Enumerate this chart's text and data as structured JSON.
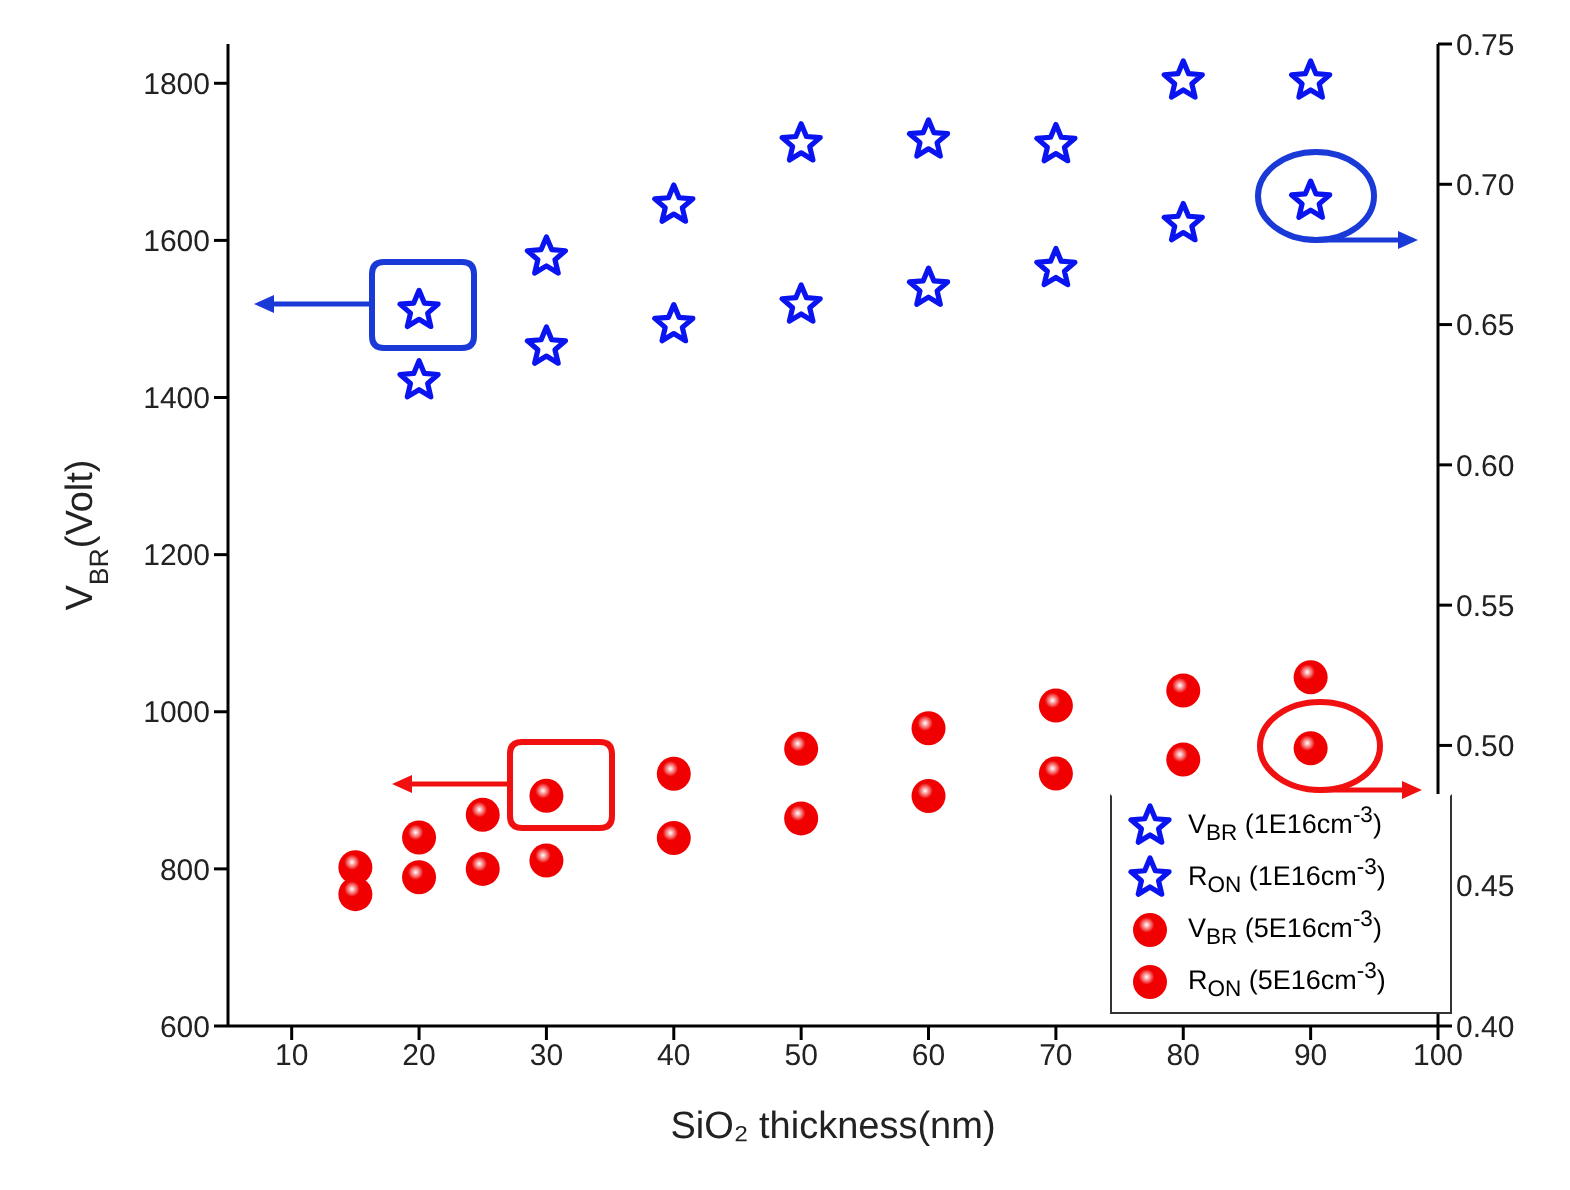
{
  "chart_data": {
    "type": "scatter",
    "xlabel": "SiO₂ thickness(nm)",
    "ylabel": "V$_{BR}$(Volt)",
    "xlim": [
      5,
      100
    ],
    "xticks": [
      10,
      20,
      30,
      40,
      50,
      60,
      70,
      80,
      90,
      100
    ],
    "ylim": [
      600,
      1850
    ],
    "yticks": [
      600,
      800,
      1000,
      1200,
      1400,
      1600,
      1800
    ],
    "y2lim": [
      0.4,
      0.75
    ],
    "y2ticks": [
      {
        "value": 0.4,
        "label": "0.40"
      },
      0.45,
      {
        "value": 0.5,
        "label": "0.50"
      },
      0.55,
      {
        "value": 0.6,
        "label": "0.60"
      },
      0.65,
      {
        "value": 0.7,
        "label": "0.70"
      },
      0.75
    ],
    "grid": false,
    "legend": "bottom right",
    "series": [
      {
        "name": "V$_{BR}$ (1E16cm$^{-3}$)",
        "color": "#0a14f0",
        "marker": "star",
        "x": [
          20,
          30,
          40,
          50,
          60,
          70,
          80,
          90
        ],
        "values": [
          1511,
          1579,
          1645,
          1723,
          1728,
          1722,
          1803,
          1803
        ]
      },
      {
        "name": "R$_{ON}$ (1E16cm$^{-3}$)",
        "color": "#0a14f0",
        "marker": "star",
        "axis": "y2",
        "x": [
          20,
          30,
          40,
          50,
          60,
          70,
          80,
          90
        ],
        "values": [
          0.63,
          0.642,
          0.65,
          0.657,
          0.663,
          0.67,
          0.686,
          0.694
        ]
      },
      {
        "name": "V$_{BR}$ (5E16cm$^{-3}$)",
        "color": "#f00000",
        "marker": "circle",
        "x": [
          15,
          20,
          25,
          30,
          40,
          50,
          60,
          70,
          80,
          90
        ],
        "values": [
          802,
          840,
          869,
          893,
          921,
          953,
          979,
          1008,
          1027,
          1044
        ]
      },
      {
        "name": "R$_{ON}$ (5E16cm$^{-3}$)",
        "color": "#f00000",
        "marker": "circle",
        "axis": "y2",
        "x": [
          15,
          20,
          25,
          30,
          40,
          50,
          60,
          70,
          80,
          90
        ],
        "values": [
          0.447,
          0.453,
          0.456,
          0.459,
          0.467,
          0.474,
          0.482,
          0.49,
          0.495,
          0.499
        ]
      }
    ]
  }
}
